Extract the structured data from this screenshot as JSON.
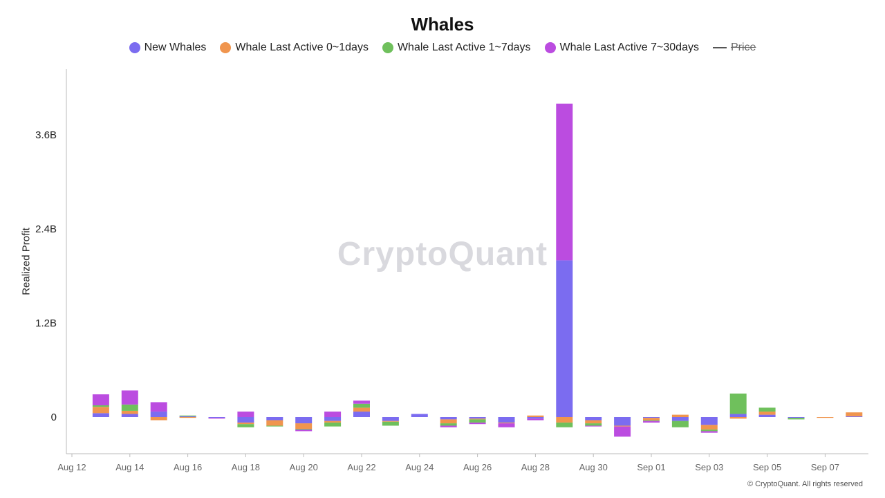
{
  "chart_data": {
    "type": "bar",
    "stacked": true,
    "title": "Whales",
    "xlabel": "",
    "ylabel": "Realized Profit",
    "ylim": [
      -0.19,
      4.55
    ],
    "y_ticks": [
      "0",
      "1.2B",
      "2.4B",
      "3.6B"
    ],
    "y_tick_values": [
      0,
      1.2,
      2.4,
      3.6
    ],
    "x_ticks": [
      "Aug 12",
      "Aug 14",
      "Aug 16",
      "Aug 18",
      "Aug 20",
      "Aug 22",
      "Aug 24",
      "Aug 26",
      "Aug 28",
      "Aug 30",
      "Sep 01",
      "Sep 03",
      "Sep 05",
      "Sep 07"
    ],
    "value_units": "billions",
    "categories": [
      "Aug 13",
      "Aug 14",
      "Aug 15",
      "Aug 16",
      "Aug 17",
      "Aug 18",
      "Aug 19",
      "Aug 20",
      "Aug 21",
      "Aug 22",
      "Aug 23",
      "Aug 24",
      "Aug 25",
      "Aug 26",
      "Aug 27",
      "Aug 28",
      "Aug 29",
      "Aug 30",
      "Aug 31",
      "Sep 01",
      "Sep 02",
      "Sep 03",
      "Sep 04",
      "Sep 05",
      "Sep 06",
      "Sep 07",
      "Sep 08"
    ],
    "series": [
      {
        "name": "New Whales",
        "color": "#7b6cf0",
        "values": [
          0.05,
          0.04,
          0.07,
          0.01,
          -0.01,
          -0.07,
          -0.04,
          -0.08,
          -0.05,
          0.07,
          -0.05,
          0.04,
          -0.03,
          -0.02,
          -0.07,
          -0.02,
          2.0,
          -0.04,
          -0.11,
          -0.01,
          -0.05,
          -0.1,
          0.04,
          0.03,
          -0.01,
          0.0,
          0.01
        ]
      },
      {
        "name": "Whale Last Active 0~1days",
        "color": "#f0954e",
        "values": [
          0.08,
          0.04,
          -0.04,
          -0.01,
          0.0,
          -0.02,
          -0.07,
          -0.07,
          -0.02,
          0.05,
          -0.01,
          0.0,
          -0.05,
          -0.01,
          -0.01,
          0.02,
          -0.07,
          -0.04,
          -0.01,
          -0.03,
          0.03,
          -0.06,
          -0.02,
          0.04,
          0.0,
          -0.01,
          0.05
        ]
      },
      {
        "name": "Whale Last Active 1~7days",
        "color": "#6fc05c",
        "values": [
          0.02,
          0.08,
          0.0,
          0.01,
          0.0,
          -0.04,
          -0.01,
          -0.01,
          -0.05,
          0.05,
          -0.05,
          0.0,
          -0.03,
          -0.04,
          0.0,
          0.0,
          -0.06,
          -0.03,
          0.0,
          -0.01,
          -0.08,
          -0.02,
          0.26,
          0.05,
          -0.02,
          0.0,
          0.0
        ]
      },
      {
        "name": "Whale Last Active 7~30days",
        "color": "#bb4ce0",
        "values": [
          0.14,
          0.18,
          0.12,
          0.0,
          -0.01,
          0.07,
          0.0,
          -0.02,
          0.07,
          0.04,
          0.0,
          0.0,
          -0.02,
          -0.02,
          -0.05,
          -0.02,
          2.0,
          -0.01,
          -0.13,
          -0.02,
          0.0,
          -0.02,
          0.0,
          0.0,
          0.0,
          0.0,
          0.0
        ]
      }
    ],
    "legend_extra": {
      "name": "Price",
      "hidden": true
    },
    "legend_position": "top-center",
    "grid": false
  },
  "watermark": "CryptoQuant",
  "footer": "© CryptoQuant. All rights reserved",
  "colors": {
    "axis": "#bbbbbb",
    "text": "#222222"
  }
}
